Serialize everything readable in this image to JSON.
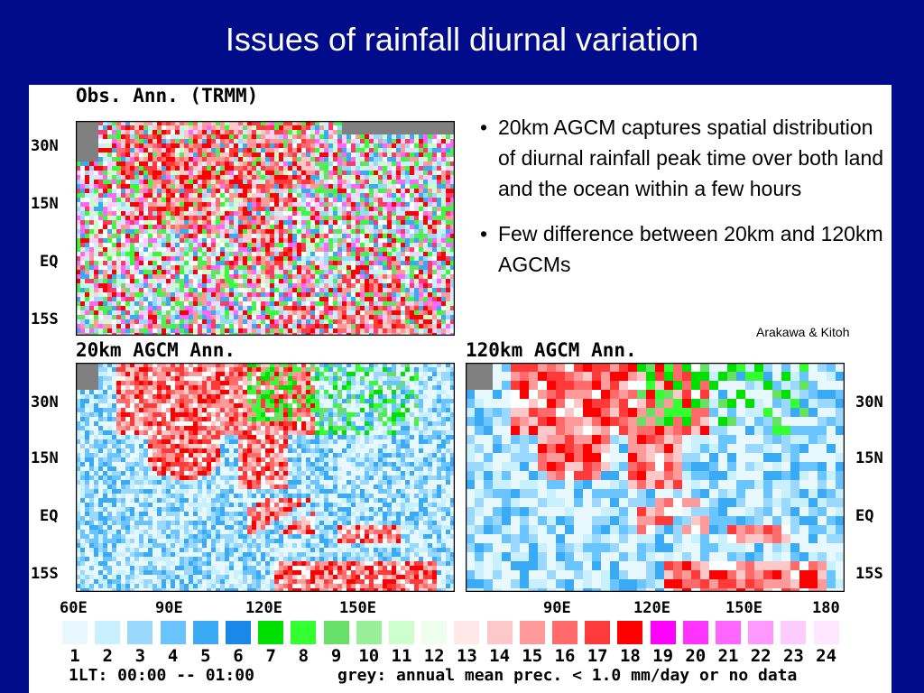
{
  "slide": {
    "title": "Issues of rainfall diurnal variation",
    "bullets": [
      "20km AGCM captures spatial distribution of diurnal rainfall peak time over both land and the ocean within a few hours",
      "Few difference between 20km and 120km AGCMs"
    ],
    "credit": "Arakawa & Kitoh"
  },
  "maps": [
    {
      "label": "Obs. Ann. (TRMM)",
      "style": "noisy"
    },
    {
      "label": "20km AGCM Ann.",
      "style": "smooth"
    },
    {
      "label": "120km AGCM Ann.",
      "style": "coarse"
    }
  ],
  "lat_ticks": [
    "30N",
    "15N",
    "EQ",
    "15S"
  ],
  "lon_ticks_left": [
    "60E",
    "90E",
    "120E",
    "150E"
  ],
  "lon_ticks_right": [
    "90E",
    "120E",
    "150E",
    "180"
  ],
  "legend": {
    "numbers": [
      "1",
      "2",
      "3",
      "4",
      "5",
      "6",
      "7",
      "8",
      "9",
      "10",
      "11",
      "12",
      "13",
      "14",
      "15",
      "16",
      "17",
      "18",
      "19",
      "20",
      "21",
      "22",
      "23",
      "24"
    ],
    "colors": [
      "#e8f8ff",
      "#c8f0ff",
      "#9ad8ff",
      "#6ac4ff",
      "#3aaaf5",
      "#1a88e8",
      "#00e000",
      "#33ff33",
      "#66e066",
      "#99ee99",
      "#ccffcc",
      "#eefff0",
      "#ffe8e8",
      "#ffc8c8",
      "#ff9a9a",
      "#ff6a6a",
      "#ff3a3a",
      "#ff0000",
      "#ff00ff",
      "#ff33ff",
      "#ff66ff",
      "#ff99ff",
      "#ffccff",
      "#ffe8ff"
    ],
    "time_label": "1LT: 00:00 -- 01:00",
    "note": "grey: annual mean prec. < 1.0 mm/day or no data"
  }
}
